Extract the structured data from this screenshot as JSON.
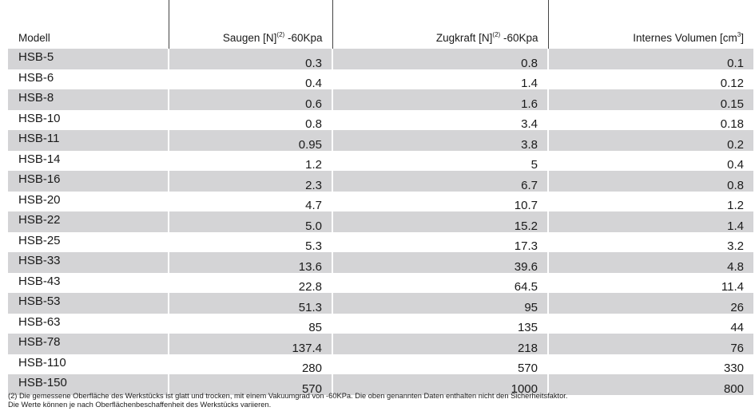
{
  "table": {
    "headers": {
      "model": "Modell",
      "suction": "Saugen [N]",
      "suction_sup": "(2)",
      "suction_unit": " -60Kpa",
      "pull": "Zugkraft [N]",
      "pull_sup": "(2)",
      "pull_unit": " -60Kpa",
      "volume": "Internes Volumen [cm",
      "volume_sup": "3",
      "volume_end": "]"
    },
    "rows": [
      {
        "model": "HSB-5",
        "suction": "0.3",
        "pull": "0.8",
        "volume": "0.1"
      },
      {
        "model": "HSB-6",
        "suction": "0.4",
        "pull": "1.4",
        "volume": "0.12"
      },
      {
        "model": "HSB-8",
        "suction": "0.6",
        "pull": "1.6",
        "volume": "0.15"
      },
      {
        "model": "HSB-10",
        "suction": "0.8",
        "pull": "3.4",
        "volume": "0.18"
      },
      {
        "model": "HSB-11",
        "suction": "0.95",
        "pull": "3.8",
        "volume": "0.2"
      },
      {
        "model": "HSB-14",
        "suction": "1.2",
        "pull": "5",
        "volume": "0.4"
      },
      {
        "model": "HSB-16",
        "suction": "2.3",
        "pull": "6.7",
        "volume": "0.8"
      },
      {
        "model": "HSB-20",
        "suction": "4.7",
        "pull": "10.7",
        "volume": "1.2"
      },
      {
        "model": "HSB-22",
        "suction": "5.0",
        "pull": "15.2",
        "volume": "1.4"
      },
      {
        "model": "HSB-25",
        "suction": "5.3",
        "pull": "17.3",
        "volume": "3.2"
      },
      {
        "model": "HSB-33",
        "suction": "13.6",
        "pull": "39.6",
        "volume": "4.8"
      },
      {
        "model": "HSB-43",
        "suction": "22.8",
        "pull": "64.5",
        "volume": "11.4"
      },
      {
        "model": "HSB-53",
        "suction": "51.3",
        "pull": "95",
        "volume": "26"
      },
      {
        "model": "HSB-63",
        "suction": "85",
        "pull": "135",
        "volume": "44"
      },
      {
        "model": "HSB-78",
        "suction": "137.4",
        "pull": "218",
        "volume": "76"
      },
      {
        "model": "HSB-110",
        "suction": "280",
        "pull": "570",
        "volume": "330"
      },
      {
        "model": "HSB-150",
        "suction": "570",
        "pull": "1000",
        "volume": "800"
      }
    ],
    "shade_color": "#d4d4d6"
  },
  "footnote": {
    "line1": "(2) Die gemessene Oberfläche des Werkstücks ist glatt und trocken, mit einem Vakuumgrad von -60KPa. Die oben genannten Daten enthalten nicht den Sicherheitsfaktor.",
    "line2": "Die Werte können je nach Oberflächenbeschaffenheit des Werkstücks variieren."
  }
}
